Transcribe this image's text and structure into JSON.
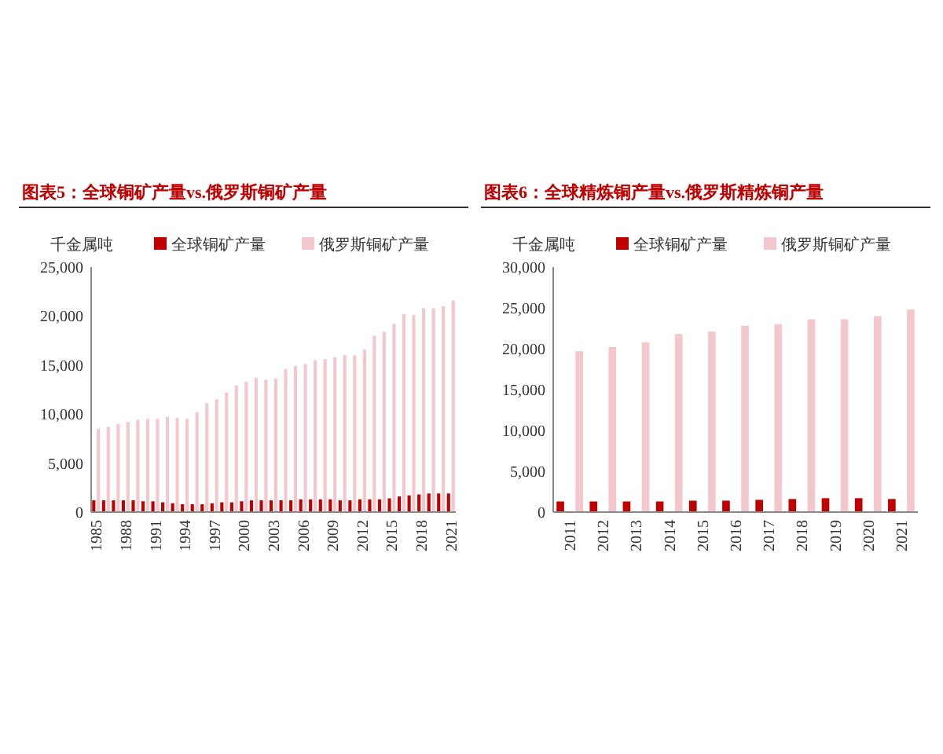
{
  "chart_data": [
    {
      "type": "bar",
      "title": "图表5：全球铜矿产量vs.俄罗斯铜矿产量",
      "ylabel": "千金属吨",
      "categories": [
        "1985",
        null,
        null,
        "1988",
        null,
        null,
        "1991",
        null,
        null,
        "1994",
        null,
        null,
        "1997",
        null,
        null,
        "2000",
        null,
        null,
        "2003",
        null,
        null,
        "2006",
        null,
        null,
        "2009",
        null,
        null,
        "2012",
        null,
        null,
        "2015",
        null,
        null,
        "2018",
        null,
        null,
        "2021"
      ],
      "series": [
        {
          "name": "全球铜矿产量",
          "color": "#c00000",
          "values": [
            1200,
            1200,
            1200,
            1200,
            1200,
            1100,
            1100,
            1000,
            900,
            800,
            800,
            800,
            900,
            1000,
            1000,
            1100,
            1200,
            1200,
            1200,
            1200,
            1200,
            1300,
            1300,
            1300,
            1300,
            1200,
            1200,
            1300,
            1300,
            1300,
            1400,
            1600,
            1700,
            1800,
            1900,
            1900,
            1900
          ]
        },
        {
          "name": "俄罗斯铜矿产量",
          "color": "#f4c7cc",
          "values": [
            8500,
            8700,
            9000,
            9200,
            9400,
            9500,
            9500,
            9700,
            9600,
            9500,
            10200,
            11100,
            11500,
            12200,
            12900,
            13300,
            13700,
            13500,
            13600,
            14600,
            14900,
            15100,
            15500,
            15600,
            15800,
            16000,
            16000,
            16600,
            18000,
            18400,
            19200,
            20200,
            20100,
            20800,
            20800,
            21000,
            21600
          ]
        }
      ],
      "ylim": [
        0,
        25000
      ],
      "yticks": [
        {
          "value": 0,
          "label": "0"
        },
        {
          "value": 5000,
          "label": "5,000"
        },
        {
          "value": 10000,
          "label": "10,000"
        },
        {
          "value": 15000,
          "label": "15,000"
        },
        {
          "value": 20000,
          "label": "20,000"
        },
        {
          "value": 25000,
          "label": "25,000"
        }
      ],
      "legend": "top",
      "grid": false
    },
    {
      "type": "bar",
      "title": "图表6：全球精炼铜产量vs.俄罗斯精炼铜产量",
      "ylabel": "千金属吨",
      "categories": [
        "2011",
        "2012",
        "2013",
        "2014",
        "2015",
        "2016",
        "2017",
        "2018",
        "2019",
        "2020",
        "2021"
      ],
      "series": [
        {
          "name": "全球铜矿产量",
          "color": "#c00000",
          "values": [
            1300,
            1300,
            1300,
            1300,
            1400,
            1400,
            1500,
            1600,
            1700,
            1700,
            1600
          ]
        },
        {
          "name": "俄罗斯铜矿产量",
          "color": "#f4c7cc",
          "values": [
            19700,
            20200,
            20800,
            21800,
            22100,
            22800,
            23000,
            23600,
            23600,
            24000,
            24800
          ]
        }
      ],
      "ylim": [
        0,
        30000
      ],
      "yticks": [
        {
          "value": 0,
          "label": "0"
        },
        {
          "value": 5000,
          "label": "5,000"
        },
        {
          "value": 10000,
          "label": "10,000"
        },
        {
          "value": 15000,
          "label": "15,000"
        },
        {
          "value": 20000,
          "label": "20,000"
        },
        {
          "value": 25000,
          "label": "25,000"
        },
        {
          "value": 30000,
          "label": "30,000"
        }
      ],
      "legend": "top",
      "grid": false
    }
  ]
}
